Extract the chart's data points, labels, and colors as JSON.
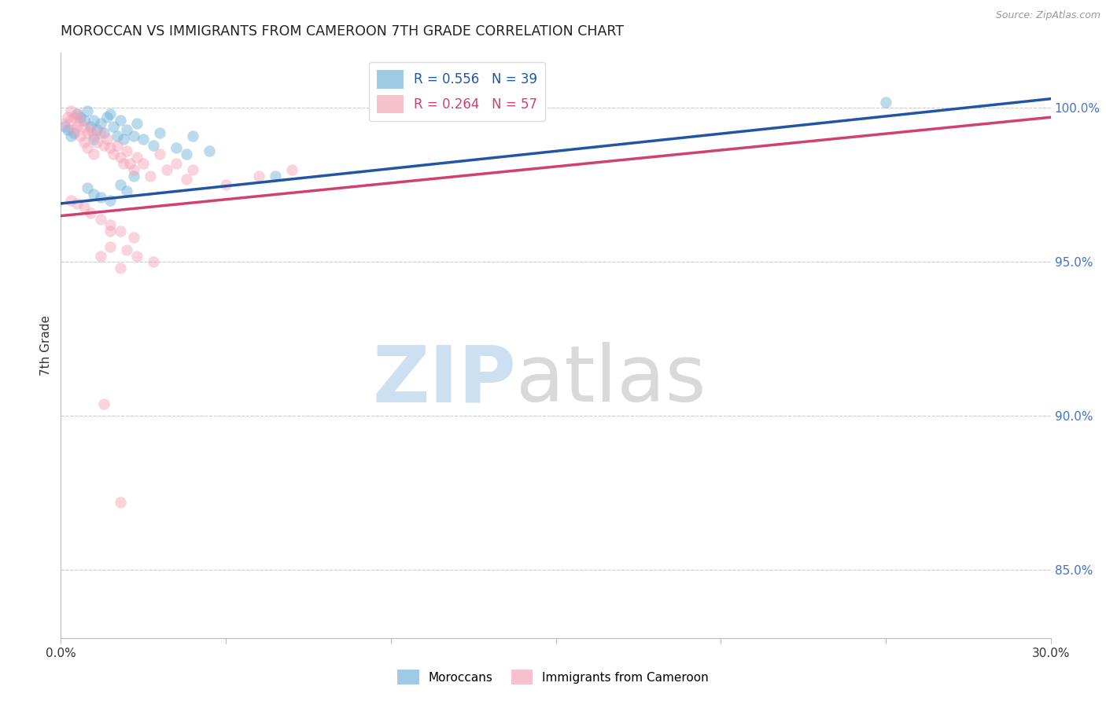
{
  "title": "MOROCCAN VS IMMIGRANTS FROM CAMEROON 7TH GRADE CORRELATION CHART",
  "source": "Source: ZipAtlas.com",
  "ylabel": "7th Grade",
  "yaxis_labels": [
    "85.0%",
    "90.0%",
    "95.0%",
    "100.0%"
  ],
  "yaxis_values": [
    0.85,
    0.9,
    0.95,
    1.0
  ],
  "xmin": 0.0,
  "xmax": 0.3,
  "ymin": 0.828,
  "ymax": 1.018,
  "legend_blue": "R = 0.556   N = 39",
  "legend_pink": "R = 0.264   N = 57",
  "legend_label_blue": "Moroccans",
  "legend_label_pink": "Immigrants from Cameroon",
  "blue_scatter_x": [
    0.001,
    0.002,
    0.003,
    0.004,
    0.005,
    0.006,
    0.007,
    0.008,
    0.009,
    0.01,
    0.01,
    0.011,
    0.012,
    0.013,
    0.014,
    0.015,
    0.016,
    0.017,
    0.018,
    0.019,
    0.02,
    0.022,
    0.023,
    0.025,
    0.028,
    0.03,
    0.035,
    0.038,
    0.04,
    0.045,
    0.008,
    0.01,
    0.012,
    0.015,
    0.018,
    0.02,
    0.022,
    0.25,
    0.065
  ],
  "blue_scatter_y": [
    0.994,
    0.993,
    0.991,
    0.992,
    0.998,
    0.997,
    0.996,
    0.999,
    0.994,
    0.996,
    0.99,
    0.993,
    0.995,
    0.992,
    0.997,
    0.998,
    0.994,
    0.991,
    0.996,
    0.99,
    0.993,
    0.991,
    0.995,
    0.99,
    0.988,
    0.992,
    0.987,
    0.985,
    0.991,
    0.986,
    0.974,
    0.972,
    0.971,
    0.97,
    0.975,
    0.973,
    0.978,
    1.002,
    0.978
  ],
  "pink_scatter_x": [
    0.001,
    0.002,
    0.003,
    0.003,
    0.004,
    0.004,
    0.005,
    0.005,
    0.006,
    0.006,
    0.007,
    0.007,
    0.008,
    0.008,
    0.009,
    0.01,
    0.01,
    0.011,
    0.012,
    0.013,
    0.014,
    0.015,
    0.016,
    0.017,
    0.018,
    0.019,
    0.02,
    0.021,
    0.022,
    0.023,
    0.025,
    0.027,
    0.03,
    0.032,
    0.035,
    0.038,
    0.04,
    0.05,
    0.06,
    0.07,
    0.003,
    0.005,
    0.007,
    0.009,
    0.012,
    0.015,
    0.018,
    0.022,
    0.015,
    0.012,
    0.023,
    0.028,
    0.018,
    0.02,
    0.015,
    0.018,
    0.013
  ],
  "pink_scatter_y": [
    0.995,
    0.997,
    0.999,
    0.996,
    0.997,
    0.993,
    0.998,
    0.994,
    0.996,
    0.991,
    0.994,
    0.989,
    0.992,
    0.987,
    0.993,
    0.991,
    0.985,
    0.989,
    0.992,
    0.988,
    0.99,
    0.987,
    0.985,
    0.988,
    0.984,
    0.982,
    0.986,
    0.982,
    0.98,
    0.984,
    0.982,
    0.978,
    0.985,
    0.98,
    0.982,
    0.977,
    0.98,
    0.975,
    0.978,
    0.98,
    0.97,
    0.969,
    0.968,
    0.966,
    0.964,
    0.962,
    0.96,
    0.958,
    0.955,
    0.952,
    0.952,
    0.95,
    0.948,
    0.954,
    0.96,
    0.872,
    0.904
  ],
  "blue_line_x": [
    0.0,
    0.3
  ],
  "blue_line_y": [
    0.969,
    1.003
  ],
  "pink_line_x": [
    0.0,
    0.3
  ],
  "pink_line_y": [
    0.965,
    0.997
  ],
  "blue_color": "#6aaed6",
  "pink_color": "#f4a0b5",
  "blue_line_color": "#2255a4",
  "pink_line_color": "#d04070",
  "scatter_size": 110,
  "scatter_alpha": 0.45,
  "bg_color": "#ffffff",
  "grid_color": "#cccccc",
  "title_color": "#222222",
  "right_tick_color": "#4472c4",
  "xtick_positions": [
    0.0,
    0.05,
    0.1,
    0.15,
    0.2,
    0.25,
    0.3
  ],
  "xtick_labels": [
    "0.0%",
    "",
    "",
    "",
    "",
    "",
    "30.0%"
  ]
}
